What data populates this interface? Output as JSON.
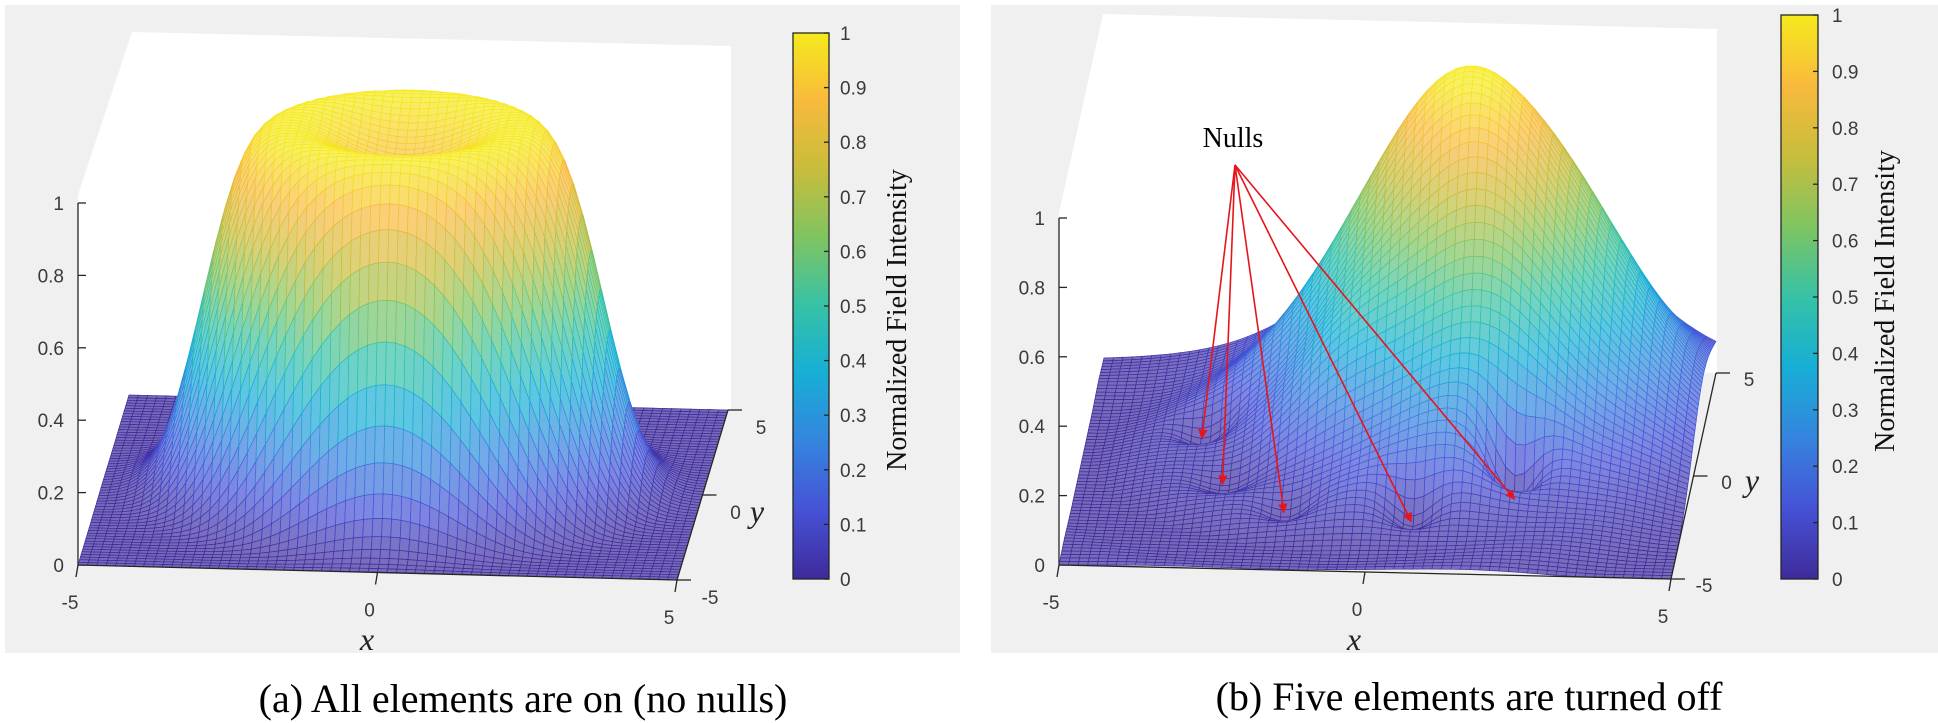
{
  "chart_data": [
    {
      "type": "surface",
      "caption": "(a)  All elements are on (no nulls)",
      "x_label": "x",
      "y_label": "y",
      "xlim": [
        -5,
        5
      ],
      "ylim": [
        -5,
        5
      ],
      "zlim": [
        0,
        1
      ],
      "x_ticks": [
        "-5",
        "0",
        "5"
      ],
      "y_ticks": [
        "-5",
        "0",
        "5"
      ],
      "z_ticks": [
        "0",
        "0.2",
        "0.4",
        "0.6",
        "0.8",
        "1"
      ],
      "colormap": "parula",
      "colorbar": {
        "label": "Normalized Field Intensity",
        "ticks": [
          "0",
          "0.1",
          "0.2",
          "0.3",
          "0.4",
          "0.5",
          "0.6",
          "0.7",
          "0.8",
          "0.9",
          "1"
        ]
      },
      "shape": "flat-topped ring (annular beam) centred at origin, peak 1 with shallow central dip"
    },
    {
      "type": "surface",
      "caption": "(b) Five elements are turned off",
      "x_label": "x",
      "y_label": "y",
      "xlim": [
        -5,
        5
      ],
      "ylim": [
        -5,
        5
      ],
      "zlim": [
        0,
        1
      ],
      "x_ticks": [
        "-5",
        "0",
        "5"
      ],
      "y_ticks": [
        "-5",
        "0",
        "5"
      ],
      "z_ticks": [
        "0",
        "0.2",
        "0.4",
        "0.6",
        "0.8",
        "1"
      ],
      "colormap": "parula",
      "colorbar": {
        "label": "Normalized Field Intensity",
        "ticks": [
          "0",
          "0.1",
          "0.2",
          "0.3",
          "0.4",
          "0.5",
          "0.6",
          "0.7",
          "0.8",
          "0.9",
          "1"
        ]
      },
      "peak": {
        "x": 1.3,
        "y": 2.5,
        "z": 1
      },
      "annotation": {
        "text": "Nulls",
        "arrow_color": "#e8141c",
        "nulls": [
          {
            "x": -3.1,
            "y": 0.9
          },
          {
            "x": -2.6,
            "y": -1.3
          },
          {
            "x": -1.5,
            "y": -2.6
          },
          {
            "x": 0.6,
            "y": -2.9
          },
          {
            "x": 2.2,
            "y": -1.7
          }
        ]
      }
    }
  ]
}
